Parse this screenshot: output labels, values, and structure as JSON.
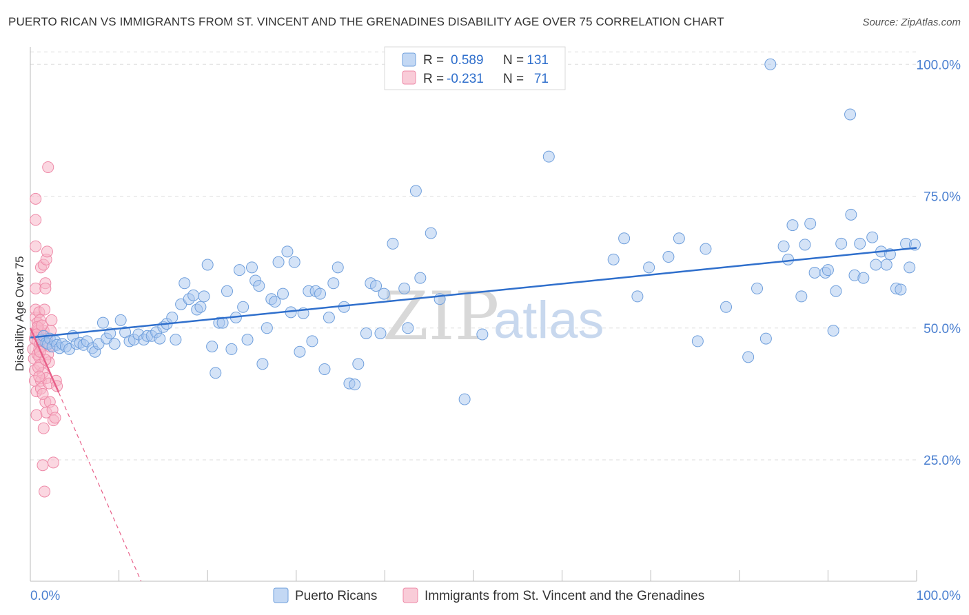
{
  "title": "PUERTO RICAN VS IMMIGRANTS FROM ST. VINCENT AND THE GRENADINES DISABILITY AGE OVER 75 CORRELATION CHART",
  "source": "Source: ZipAtlas.com",
  "watermark": {
    "part1": "ZIP",
    "part2": "atlas"
  },
  "legend_top": [
    {
      "r_label": "R =",
      "r_value": "0.589",
      "n_label": "N =",
      "n_value": "131",
      "color": "#a9c8f0"
    },
    {
      "r_label": "R =",
      "r_value": "-0.231",
      "n_label": "N =",
      "n_value": "71",
      "color": "#f7b6c8"
    }
  ],
  "colors": {
    "blue_fill": "#a9c8f0",
    "blue_stroke": "#6f9fdc",
    "blue_line": "#2f6fcc",
    "pink_fill": "#f7b6c8",
    "pink_stroke": "#ee8aa8",
    "pink_line": "#e8608a",
    "grid": "#dddddd",
    "tick_text": "#4a7fd0"
  },
  "chart_data": {
    "type": "scatter",
    "title": "PUERTO RICAN VS IMMIGRANTS FROM ST. VINCENT AND THE GRENADINES DISABILITY AGE OVER 75 CORRELATION CHART",
    "xlabel": "",
    "ylabel": "Disability Age Over 75",
    "xlim": [
      0,
      100
    ],
    "ylim": [
      2,
      102
    ],
    "x_tick_labels": [
      "0.0%",
      "100.0%"
    ],
    "y_ticks": [
      25,
      50,
      75,
      100
    ],
    "y_tick_labels": [
      "25.0%",
      "50.0%",
      "75.0%",
      "100.0%"
    ],
    "grid": true,
    "legend_position": "bottom",
    "series": [
      {
        "name": "Puerto Ricans",
        "r": 0.589,
        "n": 131,
        "trend": {
          "x": [
            0,
            100
          ],
          "y": [
            48.2,
            65.2
          ],
          "dashed_extension": false
        },
        "points": [
          [
            1.2,
            47.8
          ],
          [
            1.5,
            48.5
          ],
          [
            1.8,
            47.2
          ],
          [
            2.0,
            47.0
          ],
          [
            2.2,
            48.0
          ],
          [
            2.5,
            46.5
          ],
          [
            2.8,
            47.5
          ],
          [
            3.0,
            46.8
          ],
          [
            3.3,
            46.2
          ],
          [
            3.6,
            47.0
          ],
          [
            4.0,
            46.5
          ],
          [
            4.4,
            46.0
          ],
          [
            4.8,
            48.5
          ],
          [
            5.2,
            47.0
          ],
          [
            5.6,
            47.2
          ],
          [
            6.0,
            46.8
          ],
          [
            6.4,
            47.5
          ],
          [
            7.0,
            46.2
          ],
          [
            7.3,
            45.5
          ],
          [
            7.7,
            47.0
          ],
          [
            8.2,
            51.0
          ],
          [
            8.6,
            48.0
          ],
          [
            9.0,
            49.0
          ],
          [
            9.5,
            47.0
          ],
          [
            10.2,
            51.5
          ],
          [
            10.7,
            49.2
          ],
          [
            11.2,
            47.5
          ],
          [
            11.7,
            47.8
          ],
          [
            12.2,
            48.8
          ],
          [
            12.8,
            47.8
          ],
          [
            13.2,
            48.5
          ],
          [
            13.7,
            48.5
          ],
          [
            14.2,
            49.2
          ],
          [
            14.6,
            48.0
          ],
          [
            15.0,
            50.2
          ],
          [
            15.4,
            50.8
          ],
          [
            16.0,
            52.0
          ],
          [
            16.4,
            47.8
          ],
          [
            17.0,
            54.5
          ],
          [
            17.4,
            58.5
          ],
          [
            17.9,
            55.5
          ],
          [
            18.4,
            56.2
          ],
          [
            18.8,
            53.5
          ],
          [
            19.2,
            54.0
          ],
          [
            19.6,
            56.0
          ],
          [
            20.0,
            62.0
          ],
          [
            20.5,
            46.5
          ],
          [
            20.9,
            41.5
          ],
          [
            21.3,
            51.0
          ],
          [
            21.7,
            51.0
          ],
          [
            22.2,
            57.0
          ],
          [
            22.7,
            46.0
          ],
          [
            23.2,
            52.0
          ],
          [
            23.6,
            61.0
          ],
          [
            24.0,
            54.0
          ],
          [
            24.5,
            47.8
          ],
          [
            25.0,
            61.5
          ],
          [
            25.4,
            59.0
          ],
          [
            25.8,
            58.0
          ],
          [
            26.2,
            43.2
          ],
          [
            26.7,
            50.0
          ],
          [
            27.2,
            55.5
          ],
          [
            27.6,
            55.0
          ],
          [
            28.0,
            62.5
          ],
          [
            28.5,
            56.5
          ],
          [
            29.0,
            64.5
          ],
          [
            29.4,
            53.0
          ],
          [
            29.8,
            62.5
          ],
          [
            30.4,
            45.5
          ],
          [
            30.8,
            52.8
          ],
          [
            31.4,
            57.0
          ],
          [
            31.8,
            47.5
          ],
          [
            32.2,
            57.0
          ],
          [
            32.7,
            56.5
          ],
          [
            33.2,
            42.2
          ],
          [
            33.7,
            52.0
          ],
          [
            34.2,
            58.5
          ],
          [
            34.7,
            61.5
          ],
          [
            35.4,
            54.0
          ],
          [
            36.0,
            39.5
          ],
          [
            36.6,
            39.3
          ],
          [
            37.0,
            43.2
          ],
          [
            37.9,
            49.0
          ],
          [
            38.4,
            58.5
          ],
          [
            39.0,
            58.0
          ],
          [
            39.5,
            49.0
          ],
          [
            39.9,
            56.5
          ],
          [
            40.9,
            66.0
          ],
          [
            42.2,
            57.5
          ],
          [
            42.6,
            50.0
          ],
          [
            43.5,
            76.0
          ],
          [
            44.0,
            59.5
          ],
          [
            45.2,
            68.0
          ],
          [
            46.2,
            55.5
          ],
          [
            49.0,
            36.5
          ],
          [
            51.0,
            48.8
          ],
          [
            58.5,
            82.5
          ],
          [
            65.8,
            63.0
          ],
          [
            67.0,
            67.0
          ],
          [
            68.5,
            56.0
          ],
          [
            69.8,
            61.5
          ],
          [
            72.0,
            63.5
          ],
          [
            73.2,
            67.0
          ],
          [
            75.3,
            47.5
          ],
          [
            76.2,
            65.0
          ],
          [
            78.5,
            54.0
          ],
          [
            81.0,
            44.5
          ],
          [
            82.0,
            57.5
          ],
          [
            83.0,
            48.0
          ],
          [
            85.0,
            65.5
          ],
          [
            85.5,
            63.0
          ],
          [
            86.0,
            69.5
          ],
          [
            87.0,
            56.0
          ],
          [
            87.4,
            65.8
          ],
          [
            88.0,
            69.8
          ],
          [
            88.5,
            60.5
          ],
          [
            89.7,
            60.5
          ],
          [
            90.0,
            61.0
          ],
          [
            90.6,
            49.5
          ],
          [
            90.9,
            57.0
          ],
          [
            91.5,
            66.0
          ],
          [
            92.6,
            71.5
          ],
          [
            93.0,
            60.0
          ],
          [
            93.6,
            66.0
          ],
          [
            94.0,
            59.5
          ],
          [
            95.0,
            67.2
          ],
          [
            95.4,
            62.0
          ],
          [
            96.0,
            64.5
          ],
          [
            96.6,
            62.0
          ],
          [
            97.0,
            64.0
          ],
          [
            97.7,
            57.5
          ],
          [
            98.2,
            57.3
          ],
          [
            98.8,
            66.0
          ],
          [
            99.2,
            61.5
          ],
          [
            99.8,
            65.8
          ],
          [
            83.5,
            100.0
          ],
          [
            92.5,
            90.5
          ]
        ]
      },
      {
        "name": "Immigrants from St. Vincent and the Grenadines",
        "r": -0.231,
        "n": 71,
        "trend": {
          "x": [
            0,
            3.2
          ],
          "y": [
            50.0,
            37.8
          ],
          "dashed_to": [
            12.5,
            2.0
          ]
        },
        "points": [
          [
            0.3,
            46.0
          ],
          [
            0.4,
            44.2
          ],
          [
            0.5,
            42.0
          ],
          [
            0.5,
            48.0
          ],
          [
            0.5,
            40.0
          ],
          [
            0.6,
            52.0
          ],
          [
            0.6,
            53.5
          ],
          [
            0.6,
            57.5
          ],
          [
            0.6,
            65.5
          ],
          [
            0.6,
            70.5
          ],
          [
            0.6,
            74.5
          ],
          [
            0.7,
            38.0
          ],
          [
            0.7,
            33.5
          ],
          [
            0.7,
            49.0
          ],
          [
            0.8,
            51.0
          ],
          [
            0.8,
            47.5
          ],
          [
            0.8,
            45.0
          ],
          [
            0.9,
            50.0
          ],
          [
            0.9,
            49.5
          ],
          [
            1.0,
            46.0
          ],
          [
            1.0,
            44.5
          ],
          [
            1.0,
            53.0
          ],
          [
            1.0,
            48.5
          ],
          [
            1.1,
            47.0
          ],
          [
            1.1,
            43.0
          ],
          [
            1.1,
            51.5
          ],
          [
            1.2,
            40.0
          ],
          [
            1.2,
            38.5
          ],
          [
            1.2,
            61.5
          ],
          [
            1.3,
            47.0
          ],
          [
            1.3,
            49.0
          ],
          [
            1.3,
            46.5
          ],
          [
            1.4,
            41.5
          ],
          [
            1.4,
            24.0
          ],
          [
            1.5,
            31.0
          ],
          [
            1.5,
            49.5
          ],
          [
            1.5,
            62.0
          ],
          [
            1.6,
            53.5
          ],
          [
            1.6,
            19.0
          ],
          [
            1.6,
            47.5
          ],
          [
            1.7,
            58.5
          ],
          [
            1.7,
            57.5
          ],
          [
            1.7,
            36.0
          ],
          [
            1.8,
            34.0
          ],
          [
            1.8,
            40.5
          ],
          [
            1.8,
            63.0
          ],
          [
            1.9,
            48.0
          ],
          [
            1.9,
            64.5
          ],
          [
            2.0,
            47.0
          ],
          [
            2.0,
            45.0
          ],
          [
            2.0,
            80.5
          ],
          [
            2.1,
            39.5
          ],
          [
            2.1,
            43.5
          ],
          [
            2.2,
            36.0
          ],
          [
            2.2,
            46.5
          ],
          [
            2.3,
            49.5
          ],
          [
            2.4,
            51.5
          ],
          [
            2.5,
            34.5
          ],
          [
            2.6,
            32.5
          ],
          [
            2.6,
            24.5
          ],
          [
            2.8,
            33.0
          ],
          [
            2.9,
            40.0
          ],
          [
            3.0,
            39.0
          ],
          [
            0.9,
            42.5
          ],
          [
            1.0,
            40.8
          ],
          [
            1.1,
            45.5
          ],
          [
            1.4,
            37.5
          ],
          [
            1.7,
            44.0
          ],
          [
            0.8,
            50.2
          ],
          [
            0.7,
            48.8
          ],
          [
            1.3,
            50.5
          ]
        ]
      }
    ]
  },
  "legend_bottom": [
    {
      "label": "Puerto Ricans",
      "color": "#a9c8f0"
    },
    {
      "label": "Immigrants from St. Vincent and the Grenadines",
      "color": "#f7b6c8"
    }
  ]
}
